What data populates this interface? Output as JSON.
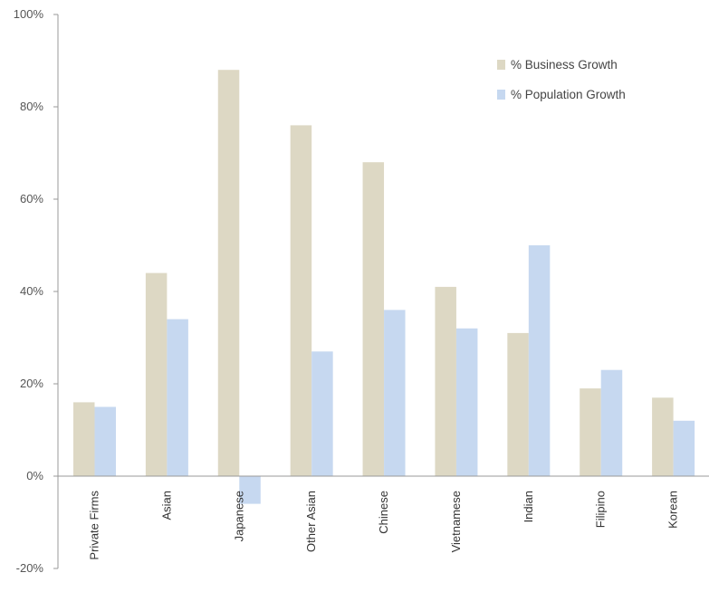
{
  "chart_data": {
    "type": "bar",
    "categories": [
      "Private Firms",
      "Asian",
      "Japanese",
      "Other Asian",
      "Chinese",
      "Vietnamese",
      "Indian",
      "Filipino",
      "Korean"
    ],
    "series": [
      {
        "name": "% Business Growth",
        "color": "#ddd8c4",
        "values": [
          16,
          44,
          88,
          76,
          68,
          41,
          31,
          19,
          17
        ]
      },
      {
        "name": "% Population Growth",
        "color": "#c6d8f0",
        "values": [
          15,
          34,
          -6,
          27,
          36,
          32,
          50,
          23,
          12
        ]
      }
    ],
    "ylim": [
      -20,
      100
    ],
    "yticks": [
      -20,
      0,
      20,
      40,
      60,
      80,
      100
    ],
    "ytick_suffix": "%",
    "legend_position": "top-right",
    "grid": false
  }
}
